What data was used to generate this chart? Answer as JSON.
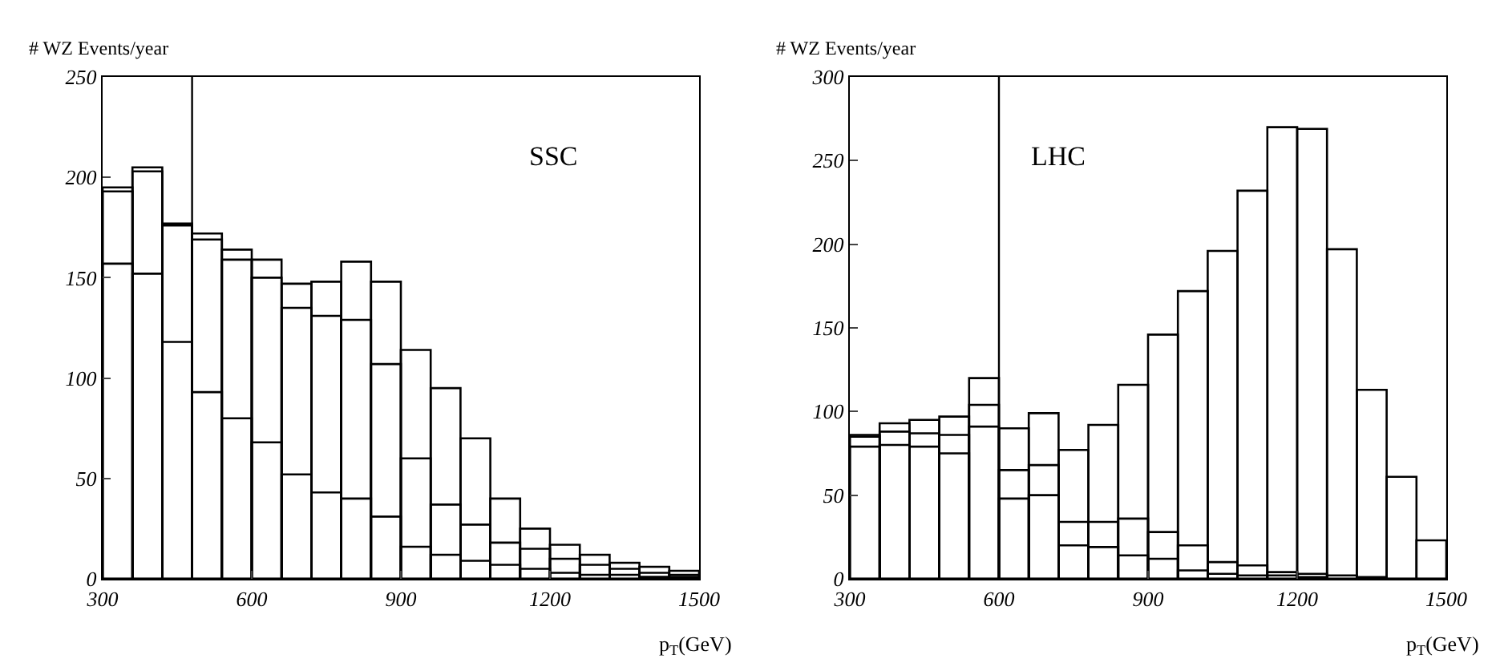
{
  "chart_data": [
    {
      "type": "histogram",
      "ylabel": "# WZ Events/year",
      "xlabel": "p$_{T}$(GeV)",
      "annotations": [
        "SSC"
      ],
      "bins": [
        300,
        360,
        420,
        480,
        540,
        600,
        660,
        720,
        780,
        840,
        900,
        960,
        1020,
        1080,
        1140,
        1200,
        1260,
        1320,
        1380,
        1440,
        1500
      ],
      "series": [
        {
          "color": "#000000",
          "values": [
            195,
            205,
            177,
            172,
            164,
            159,
            147,
            148,
            158,
            148,
            114,
            95,
            70,
            40,
            25,
            17,
            12,
            8,
            6,
            4
          ]
        },
        {
          "color": "#000000",
          "values": [
            193,
            203,
            176,
            169,
            159,
            150,
            135,
            131,
            129,
            107,
            60,
            37,
            27,
            18,
            15,
            10,
            7,
            5,
            3,
            2
          ]
        },
        {
          "color": "#000000",
          "values": [
            157,
            152,
            118,
            93,
            80,
            68,
            52,
            43,
            40,
            31,
            16,
            12,
            9,
            7,
            5,
            3,
            2,
            2,
            1,
            1
          ]
        }
      ],
      "xlim": [
        300,
        1500
      ],
      "xticks": [
        300,
        600,
        900,
        1200,
        1500
      ],
      "ylim": [
        0,
        250
      ],
      "yticks": [
        0,
        50,
        100,
        150,
        200,
        250
      ],
      "ref_lines": [
        {
          "axis": "x",
          "value": 480,
          "color": "#000000"
        }
      ]
    },
    {
      "type": "histogram",
      "ylabel": "# WZ Events/year",
      "xlabel": "p$_{T}$(GeV)",
      "annotations": [
        "LHC"
      ],
      "bins": [
        300,
        360,
        420,
        480,
        540,
        600,
        660,
        720,
        780,
        840,
        900,
        960,
        1020,
        1080,
        1140,
        1200,
        1260,
        1320,
        1380,
        1440,
        1500
      ],
      "series": [
        {
          "color": "#000000",
          "values": [
            86,
            93,
            95,
            97,
            120,
            90,
            99,
            77,
            92,
            116,
            146,
            172,
            196,
            232,
            270,
            269,
            197,
            113,
            61,
            23
          ]
        },
        {
          "color": "#000000",
          "values": [
            85,
            88,
            87,
            86,
            104,
            65,
            68,
            34,
            34,
            36,
            28,
            20,
            10,
            8,
            4,
            3,
            2,
            1,
            0,
            0
          ]
        },
        {
          "color": "#000000",
          "values": [
            79,
            80,
            79,
            75,
            91,
            48,
            50,
            20,
            19,
            14,
            12,
            5,
            3,
            2,
            2,
            1,
            0,
            0,
            0,
            0
          ]
        }
      ],
      "xlim": [
        300,
        1500
      ],
      "xticks": [
        300,
        600,
        900,
        1200,
        1500
      ],
      "ylim": [
        0,
        300
      ],
      "yticks": [
        0,
        50,
        100,
        150,
        200,
        250,
        300
      ],
      "ref_lines": [
        {
          "axis": "x",
          "value": 600,
          "color": "#000000"
        }
      ]
    }
  ]
}
